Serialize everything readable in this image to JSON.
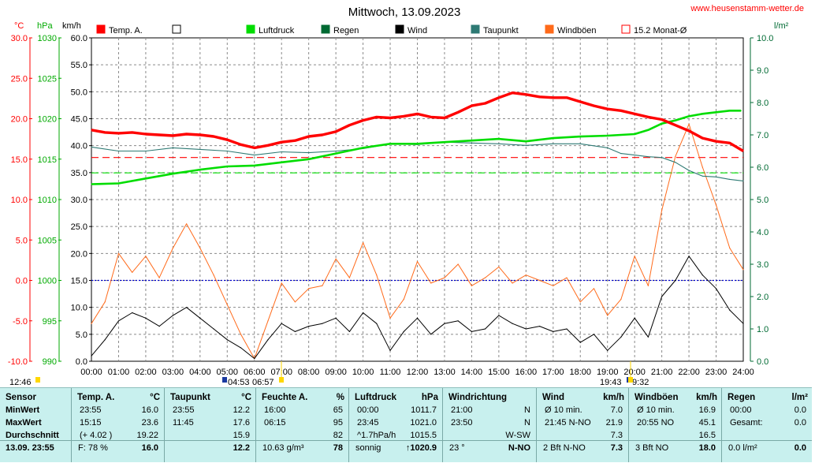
{
  "header": {
    "title": "Mittwoch, 13.09.2023",
    "website": "www.heusenstamm-wetter.de",
    "axis_units": {
      "temp": "°C",
      "pressure": "hPa",
      "wind": "km/h",
      "rain": "l/m²"
    }
  },
  "legend": [
    {
      "label": "Temp. A.",
      "color": "#ff0000",
      "fill": true
    },
    {
      "label": "",
      "color": "#000000",
      "fill": false
    },
    {
      "label": "Luftdruck",
      "color": "#00dd00",
      "fill": true
    },
    {
      "label": "Regen",
      "color": "#006a33",
      "fill": true
    },
    {
      "label": "Wind",
      "color": "#000000",
      "fill": true
    },
    {
      "label": "Taupunkt",
      "color": "#2e7a74",
      "fill": true
    },
    {
      "label": "Windböen",
      "color": "#ff6a1a",
      "fill": true
    },
    {
      "label": "15.2 Monat-Ø",
      "color": "#ff0000",
      "fill": false
    }
  ],
  "sun": {
    "sunrise": "06:57",
    "sunset": "19:43",
    "moonrise": "04:53",
    "moonset": "9:32",
    "left_time": "12:46"
  },
  "chart_data": {
    "type": "line",
    "title": "Mittwoch, 13.09.2023",
    "x_ticks": [
      "00:00",
      "01:00",
      "02:00",
      "03:00",
      "04:00",
      "05:00",
      "06:00",
      "07:00",
      "08:00",
      "09:00",
      "10:00",
      "11:00",
      "12:00",
      "13:00",
      "14:00",
      "15:00",
      "16:00",
      "17:00",
      "18:00",
      "19:00",
      "20:00",
      "21:00",
      "22:00",
      "23:00",
      "24:00"
    ],
    "xlim": [
      0,
      24
    ],
    "axes": {
      "temp": {
        "unit": "°C",
        "ylim": [
          -10,
          30
        ],
        "ticks": [
          "30.0",
          "25.0",
          "20.0",
          "15.0",
          "10.0",
          "5.0",
          "0.0",
          "-5.0",
          "-10.0"
        ]
      },
      "pressure": {
        "unit": "hPa",
        "ylim": [
          990,
          1030
        ],
        "ticks": [
          "1030",
          "1025",
          "1020",
          "1015",
          "1010",
          "1005",
          "1000",
          "995",
          "990"
        ]
      },
      "wind": {
        "unit": "km/h",
        "ylim": [
          0,
          60
        ],
        "ticks": [
          "60.0",
          "55.0",
          "50.0",
          "45.0",
          "40.0",
          "35.0",
          "30.0",
          "25.0",
          "20.0",
          "15.0",
          "10.0",
          "5.0",
          "0.0"
        ]
      },
      "rain": {
        "unit": "l/m²",
        "ylim": [
          0,
          10
        ],
        "ticks": [
          "10.0",
          "9.0",
          "8.0",
          "7.0",
          "6.0",
          "5.0",
          "4.0",
          "3.0",
          "2.0",
          "1.0",
          "0.0"
        ]
      }
    },
    "reference_lines": [
      {
        "name": "15.2 Monat-Ø",
        "axis": "temp",
        "value": 15.2,
        "color": "#ff0000"
      },
      {
        "name": "Luftdruck ref",
        "axis": "pressure",
        "value": 1013.3,
        "color": "#00dd00"
      },
      {
        "name": "Temp 0",
        "axis": "temp",
        "value": 0.0,
        "color": "#0000cc"
      }
    ],
    "series": [
      {
        "name": "Temp. A.",
        "axis": "temp",
        "color": "#ff0000",
        "width": 3.4,
        "x": [
          0,
          0.5,
          1,
          1.5,
          2,
          2.5,
          3,
          3.5,
          4,
          4.5,
          5,
          5.5,
          6,
          6.5,
          7,
          7.5,
          8,
          8.5,
          9,
          9.5,
          10,
          10.5,
          11,
          11.5,
          12,
          12.5,
          13,
          13.5,
          14,
          14.5,
          15,
          15.5,
          16,
          16.5,
          17,
          17.5,
          18,
          18.5,
          19,
          19.5,
          20,
          20.5,
          21,
          21.5,
          22,
          22.5,
          23,
          23.5,
          24
        ],
        "y": [
          18.6,
          18.3,
          18.2,
          18.3,
          18.1,
          18.0,
          17.9,
          18.1,
          18.0,
          17.8,
          17.4,
          16.8,
          16.4,
          16.7,
          17.1,
          17.3,
          17.8,
          18.0,
          18.4,
          19.2,
          19.8,
          20.2,
          20.1,
          20.3,
          20.6,
          20.2,
          20.1,
          20.8,
          21.6,
          21.9,
          22.6,
          23.2,
          23.0,
          22.7,
          22.6,
          22.6,
          22.1,
          21.6,
          21.2,
          21.0,
          20.6,
          20.2,
          19.9,
          19.2,
          18.5,
          17.6,
          17.2,
          17.0,
          16.0
        ]
      },
      {
        "name": "Luftdruck",
        "axis": "pressure",
        "color": "#00dd00",
        "width": 2.6,
        "x": [
          0,
          1,
          2,
          3,
          4,
          5,
          6,
          7,
          8,
          9,
          10,
          11,
          12,
          13,
          14,
          15,
          16,
          17,
          18,
          19,
          20,
          20.5,
          21,
          21.5,
          22,
          22.5,
          23,
          23.5,
          23.92
        ],
        "y": [
          1011.9,
          1012.0,
          1012.6,
          1013.2,
          1013.7,
          1014.1,
          1014.2,
          1014.6,
          1015.0,
          1015.7,
          1016.4,
          1016.9,
          1016.9,
          1017.1,
          1017.3,
          1017.5,
          1017.2,
          1017.6,
          1017.8,
          1017.9,
          1018.1,
          1018.6,
          1019.4,
          1019.8,
          1020.3,
          1020.6,
          1020.8,
          1021.0,
          1021.0
        ]
      },
      {
        "name": "Taupunkt",
        "axis": "temp",
        "color": "#2e7a74",
        "width": 1.1,
        "x": [
          0,
          1,
          2,
          3,
          4,
          5,
          6,
          7,
          8,
          9,
          10,
          11,
          12,
          13,
          14,
          15,
          16,
          17,
          18,
          19,
          19.5,
          20,
          20.5,
          21,
          21.5,
          22,
          22.5,
          23,
          23.5,
          24
        ],
        "y": [
          16.5,
          16.0,
          16.0,
          16.4,
          16.2,
          16.0,
          15.5,
          15.9,
          15.8,
          16.0,
          16.3,
          16.9,
          16.8,
          17.1,
          17.0,
          16.9,
          16.7,
          16.9,
          16.9,
          16.4,
          15.7,
          15.5,
          15.3,
          15.2,
          14.6,
          13.6,
          12.9,
          12.8,
          12.5,
          12.3
        ]
      },
      {
        "name": "Wind",
        "axis": "wind",
        "color": "#000000",
        "width": 1.0,
        "x": [
          0,
          0.5,
          1,
          1.5,
          2,
          2.5,
          3,
          3.5,
          4,
          4.5,
          5,
          5.5,
          6,
          6.5,
          7,
          7.5,
          8,
          8.5,
          9,
          9.5,
          10,
          10.5,
          11,
          11.5,
          12,
          12.5,
          13,
          13.5,
          14,
          14.5,
          15,
          15.5,
          16,
          16.5,
          17,
          17.5,
          18,
          18.5,
          19,
          19.5,
          20,
          20.5,
          21,
          21.5,
          22,
          22.5,
          23,
          23.5,
          24
        ],
        "y": [
          1.0,
          4.0,
          7.5,
          9.0,
          8.0,
          6.5,
          8.5,
          10.0,
          8.0,
          6.0,
          4.0,
          2.5,
          0.5,
          4.0,
          7.0,
          5.5,
          6.5,
          7.0,
          8.0,
          5.5,
          9.0,
          7.0,
          2.0,
          5.5,
          8.0,
          5.0,
          7.0,
          7.5,
          5.5,
          6.0,
          8.5,
          7.0,
          6.0,
          6.5,
          5.5,
          6.0,
          3.5,
          5.0,
          2.0,
          4.5,
          8.0,
          4.5,
          12.0,
          15.0,
          19.5,
          16.0,
          13.5,
          9.5,
          7.0
        ]
      },
      {
        "name": "Windböen",
        "axis": "wind",
        "color": "#ff6a1a",
        "width": 1.0,
        "x": [
          0,
          0.5,
          1,
          1.5,
          2,
          2.5,
          3,
          3.5,
          4,
          4.5,
          5,
          5.5,
          6,
          6.5,
          7,
          7.5,
          8,
          8.5,
          9,
          9.5,
          10,
          10.5,
          11,
          11.5,
          12,
          12.5,
          13,
          13.5,
          14,
          14.5,
          15,
          15.5,
          16,
          16.5,
          17,
          17.5,
          18,
          18.5,
          19,
          19.5,
          20,
          20.5,
          21,
          21.5,
          22,
          22.5,
          23,
          23.5,
          24
        ],
        "y": [
          7.0,
          11.0,
          20.0,
          16.5,
          19.5,
          15.5,
          21.0,
          25.5,
          21.0,
          16.0,
          10.5,
          5.0,
          0.5,
          7.5,
          14.5,
          11.0,
          13.5,
          14.0,
          19.0,
          15.5,
          22.0,
          16.0,
          8.0,
          11.5,
          18.5,
          14.5,
          15.5,
          18.0,
          14.0,
          15.5,
          17.5,
          14.5,
          16.0,
          15.0,
          14.0,
          15.5,
          11.0,
          13.5,
          8.5,
          11.5,
          19.5,
          14.0,
          28.0,
          38.0,
          44.0,
          36.0,
          29.0,
          21.0,
          17.0
        ]
      }
    ]
  },
  "table": {
    "columns": [
      {
        "title": "Sensor",
        "unit": "",
        "rows": [
          [
            "MinWert",
            ""
          ],
          [
            "MaxWert",
            ""
          ],
          [
            "Durchschnitt",
            ""
          ]
        ],
        "bottom": [
          "13.09. 23:55",
          ""
        ]
      },
      {
        "title": "Temp. A.",
        "unit": "°C",
        "rows": [
          [
            "23:55",
            "16.0"
          ],
          [
            "15:15",
            "23.6"
          ],
          [
            "(+ 4.02 )",
            "19.22"
          ]
        ],
        "bottom": [
          "F: 78 %",
          "16.0"
        ]
      },
      {
        "title": "Taupunkt",
        "unit": "°C",
        "rows": [
          [
            "23:55",
            "12.2"
          ],
          [
            "11:45",
            "17.6"
          ],
          [
            "",
            "15.9"
          ]
        ],
        "bottom": [
          "",
          "12.2"
        ]
      },
      {
        "title": "Feuchte A.",
        "unit": "%",
        "rows": [
          [
            "16:00",
            "65"
          ],
          [
            "06:15",
            "95"
          ],
          [
            "",
            "82"
          ]
        ],
        "bottom": [
          "10.63 g/m³",
          "78"
        ]
      },
      {
        "title": "Luftdruck",
        "unit": "hPa",
        "rows": [
          [
            "00:00",
            "1011.7"
          ],
          [
            "23:45",
            "1021.0"
          ],
          [
            "^1.7hPa/h",
            "1015.5"
          ]
        ],
        "bottom": [
          "sonnig",
          "↑1020.9"
        ]
      },
      {
        "title": "Windrichtung",
        "unit": "",
        "rows": [
          [
            "21:00",
            "N"
          ],
          [
            "23:50",
            "N"
          ],
          [
            "",
            "W-SW"
          ]
        ],
        "bottom": [
          "23 °",
          "N-NO"
        ]
      },
      {
        "title": "Wind",
        "unit": "km/h",
        "rows": [
          [
            "Ø 10 min.",
            "7.0"
          ],
          [
            "21:45   N-NO",
            "21.9"
          ],
          [
            "",
            "7.3"
          ]
        ],
        "bottom": [
          "2 Bft N-NO",
          "7.3"
        ]
      },
      {
        "title": "Windböen",
        "unit": "km/h",
        "rows": [
          [
            "Ø 10 min.",
            "16.9"
          ],
          [
            "20:55   NO",
            "45.1"
          ],
          [
            "",
            "16.5"
          ]
        ],
        "bottom": [
          "3 Bft NO",
          "18.0"
        ]
      },
      {
        "title": "Regen",
        "unit": "l/m²",
        "rows": [
          [
            "00:00",
            "0.0"
          ],
          [
            "Gesamt:",
            "0.0"
          ],
          [
            "",
            ""
          ]
        ],
        "bottom": [
          "0.0 l/m²",
          "0.0"
        ]
      }
    ]
  }
}
